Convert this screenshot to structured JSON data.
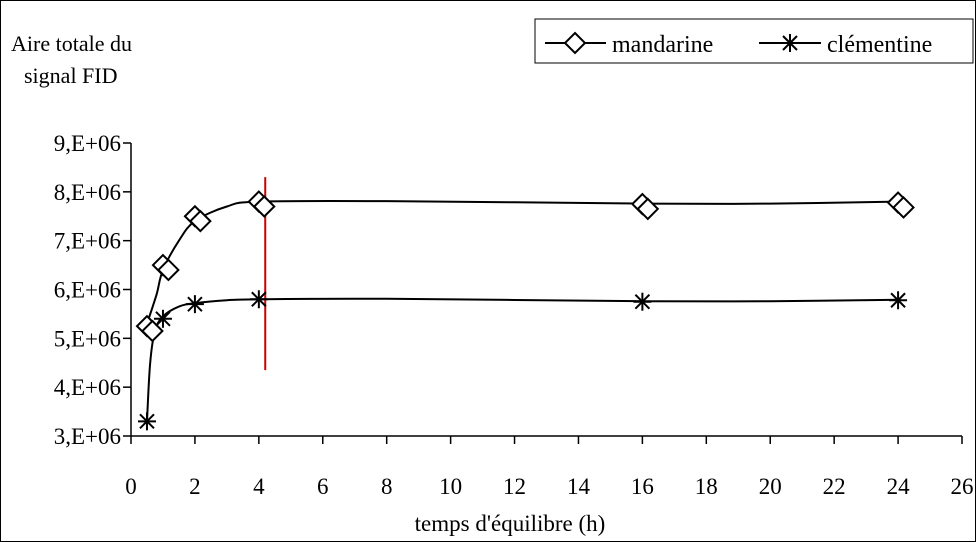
{
  "chart_data": {
    "type": "line",
    "ylabel_lines": [
      "Aire totale du",
      "signal FID"
    ],
    "xlabel": "temps d'équilibre (h)",
    "xlim": [
      0,
      26
    ],
    "ylim": [
      3000000,
      9000000
    ],
    "xticks": [
      0,
      2,
      4,
      6,
      8,
      10,
      12,
      14,
      16,
      18,
      20,
      22,
      24,
      26
    ],
    "xtick_labels": [
      "0",
      "2",
      "4",
      "6",
      "8",
      "10",
      "12",
      "14",
      "16",
      "18",
      "20",
      "22",
      "24",
      "26"
    ],
    "yticks": [
      3000000,
      4000000,
      5000000,
      6000000,
      7000000,
      8000000,
      9000000
    ],
    "ytick_labels": [
      "3,E+06",
      "4,E+06",
      "5,E+06",
      "6,E+06",
      "7,E+06",
      "8,E+06",
      "9,E+06"
    ],
    "legend_position": "top-right",
    "grid": false,
    "series": [
      {
        "name": "mandarine",
        "marker": "diamond",
        "points": [
          {
            "x": 0.5,
            "y": 5250000
          },
          {
            "x": 0.67,
            "y": 5150000
          },
          {
            "x": 1.0,
            "y": 6500000
          },
          {
            "x": 1.17,
            "y": 6400000
          },
          {
            "x": 2.0,
            "y": 7500000
          },
          {
            "x": 2.17,
            "y": 7400000
          },
          {
            "x": 4.0,
            "y": 7800000
          },
          {
            "x": 4.17,
            "y": 7700000
          },
          {
            "x": 16.0,
            "y": 7750000
          },
          {
            "x": 16.17,
            "y": 7650000
          },
          {
            "x": 24.0,
            "y": 7780000
          },
          {
            "x": 24.17,
            "y": 7680000
          }
        ],
        "fit_curve": [
          {
            "x": 0.5,
            "y": 5300000
          },
          {
            "x": 0.8,
            "y": 5900000
          },
          {
            "x": 1.0,
            "y": 6400000
          },
          {
            "x": 1.5,
            "y": 7000000
          },
          {
            "x": 2.0,
            "y": 7400000
          },
          {
            "x": 3.0,
            "y": 7700000
          },
          {
            "x": 4.0,
            "y": 7800000
          },
          {
            "x": 8.0,
            "y": 7810000
          },
          {
            "x": 16.0,
            "y": 7760000
          },
          {
            "x": 20.0,
            "y": 7760000
          },
          {
            "x": 24.0,
            "y": 7800000
          }
        ]
      },
      {
        "name": "clémentine",
        "marker": "asterisk",
        "points": [
          {
            "x": 0.5,
            "y": 3300000
          },
          {
            "x": 1.0,
            "y": 5400000
          },
          {
            "x": 2.0,
            "y": 5700000
          },
          {
            "x": 4.0,
            "y": 5800000
          },
          {
            "x": 16.0,
            "y": 5750000
          },
          {
            "x": 24.0,
            "y": 5780000
          }
        ],
        "fit_curve": [
          {
            "x": 0.5,
            "y": 3300000
          },
          {
            "x": 0.6,
            "y": 4500000
          },
          {
            "x": 0.75,
            "y": 5150000
          },
          {
            "x": 1.0,
            "y": 5450000
          },
          {
            "x": 1.5,
            "y": 5650000
          },
          {
            "x": 2.0,
            "y": 5720000
          },
          {
            "x": 3.0,
            "y": 5780000
          },
          {
            "x": 4.0,
            "y": 5800000
          },
          {
            "x": 8.0,
            "y": 5810000
          },
          {
            "x": 16.0,
            "y": 5760000
          },
          {
            "x": 20.0,
            "y": 5760000
          },
          {
            "x": 24.0,
            "y": 5790000
          }
        ]
      }
    ],
    "reference_line": {
      "x": 4.2,
      "y_top": 8300000,
      "y_bottom": 4350000,
      "color": "#cc0000"
    }
  }
}
